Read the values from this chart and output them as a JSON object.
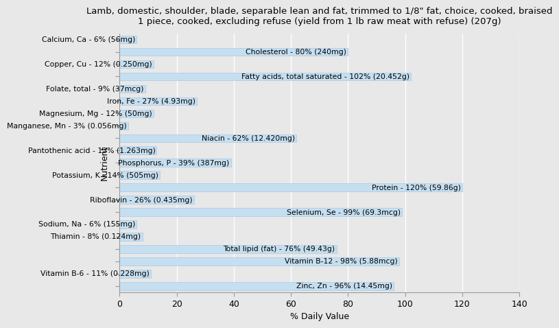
{
  "title": "Lamb, domestic, shoulder, blade, separable lean and fat, trimmed to 1/8\" fat, choice, cooked, braised\n1 piece, cooked, excluding refuse (yield from 1 lb raw meat with refuse) (207g)",
  "xlabel": "% Daily Value",
  "ylabel": "Nutrient",
  "nutrients": [
    "Calcium, Ca - 6% (56mg)",
    "Cholesterol - 80% (240mg)",
    "Copper, Cu - 12% (0.250mg)",
    "Fatty acids, total saturated - 102% (20.452g)",
    "Folate, total - 9% (37mcg)",
    "Iron, Fe - 27% (4.93mg)",
    "Magnesium, Mg - 12% (50mg)",
    "Manganese, Mn - 3% (0.056mg)",
    "Niacin - 62% (12.420mg)",
    "Pantothenic acid - 13% (1.263mg)",
    "Phosphorus, P - 39% (387mg)",
    "Potassium, K - 14% (505mg)",
    "Protein - 120% (59.86g)",
    "Riboflavin - 26% (0.435mg)",
    "Selenium, Se - 99% (69.3mcg)",
    "Sodium, Na - 6% (155mg)",
    "Thiamin - 8% (0.124mg)",
    "Total lipid (fat) - 76% (49.43g)",
    "Vitamin B-12 - 98% (5.88mcg)",
    "Vitamin B-6 - 11% (0.228mg)",
    "Zinc, Zn - 96% (14.45mg)"
  ],
  "values": [
    6,
    80,
    12,
    102,
    9,
    27,
    12,
    3,
    62,
    13,
    39,
    14,
    120,
    26,
    99,
    6,
    8,
    76,
    98,
    11,
    96
  ],
  "bar_color": "#c5dff0",
  "bar_edge_color": "#a8c8e8",
  "background_color": "#e8e8e8",
  "title_fontsize": 9.5,
  "label_fontsize": 7.8,
  "tick_fontsize": 9,
  "xlim": [
    0,
    140
  ],
  "xticks": [
    0,
    20,
    40,
    60,
    80,
    100,
    120,
    140
  ]
}
